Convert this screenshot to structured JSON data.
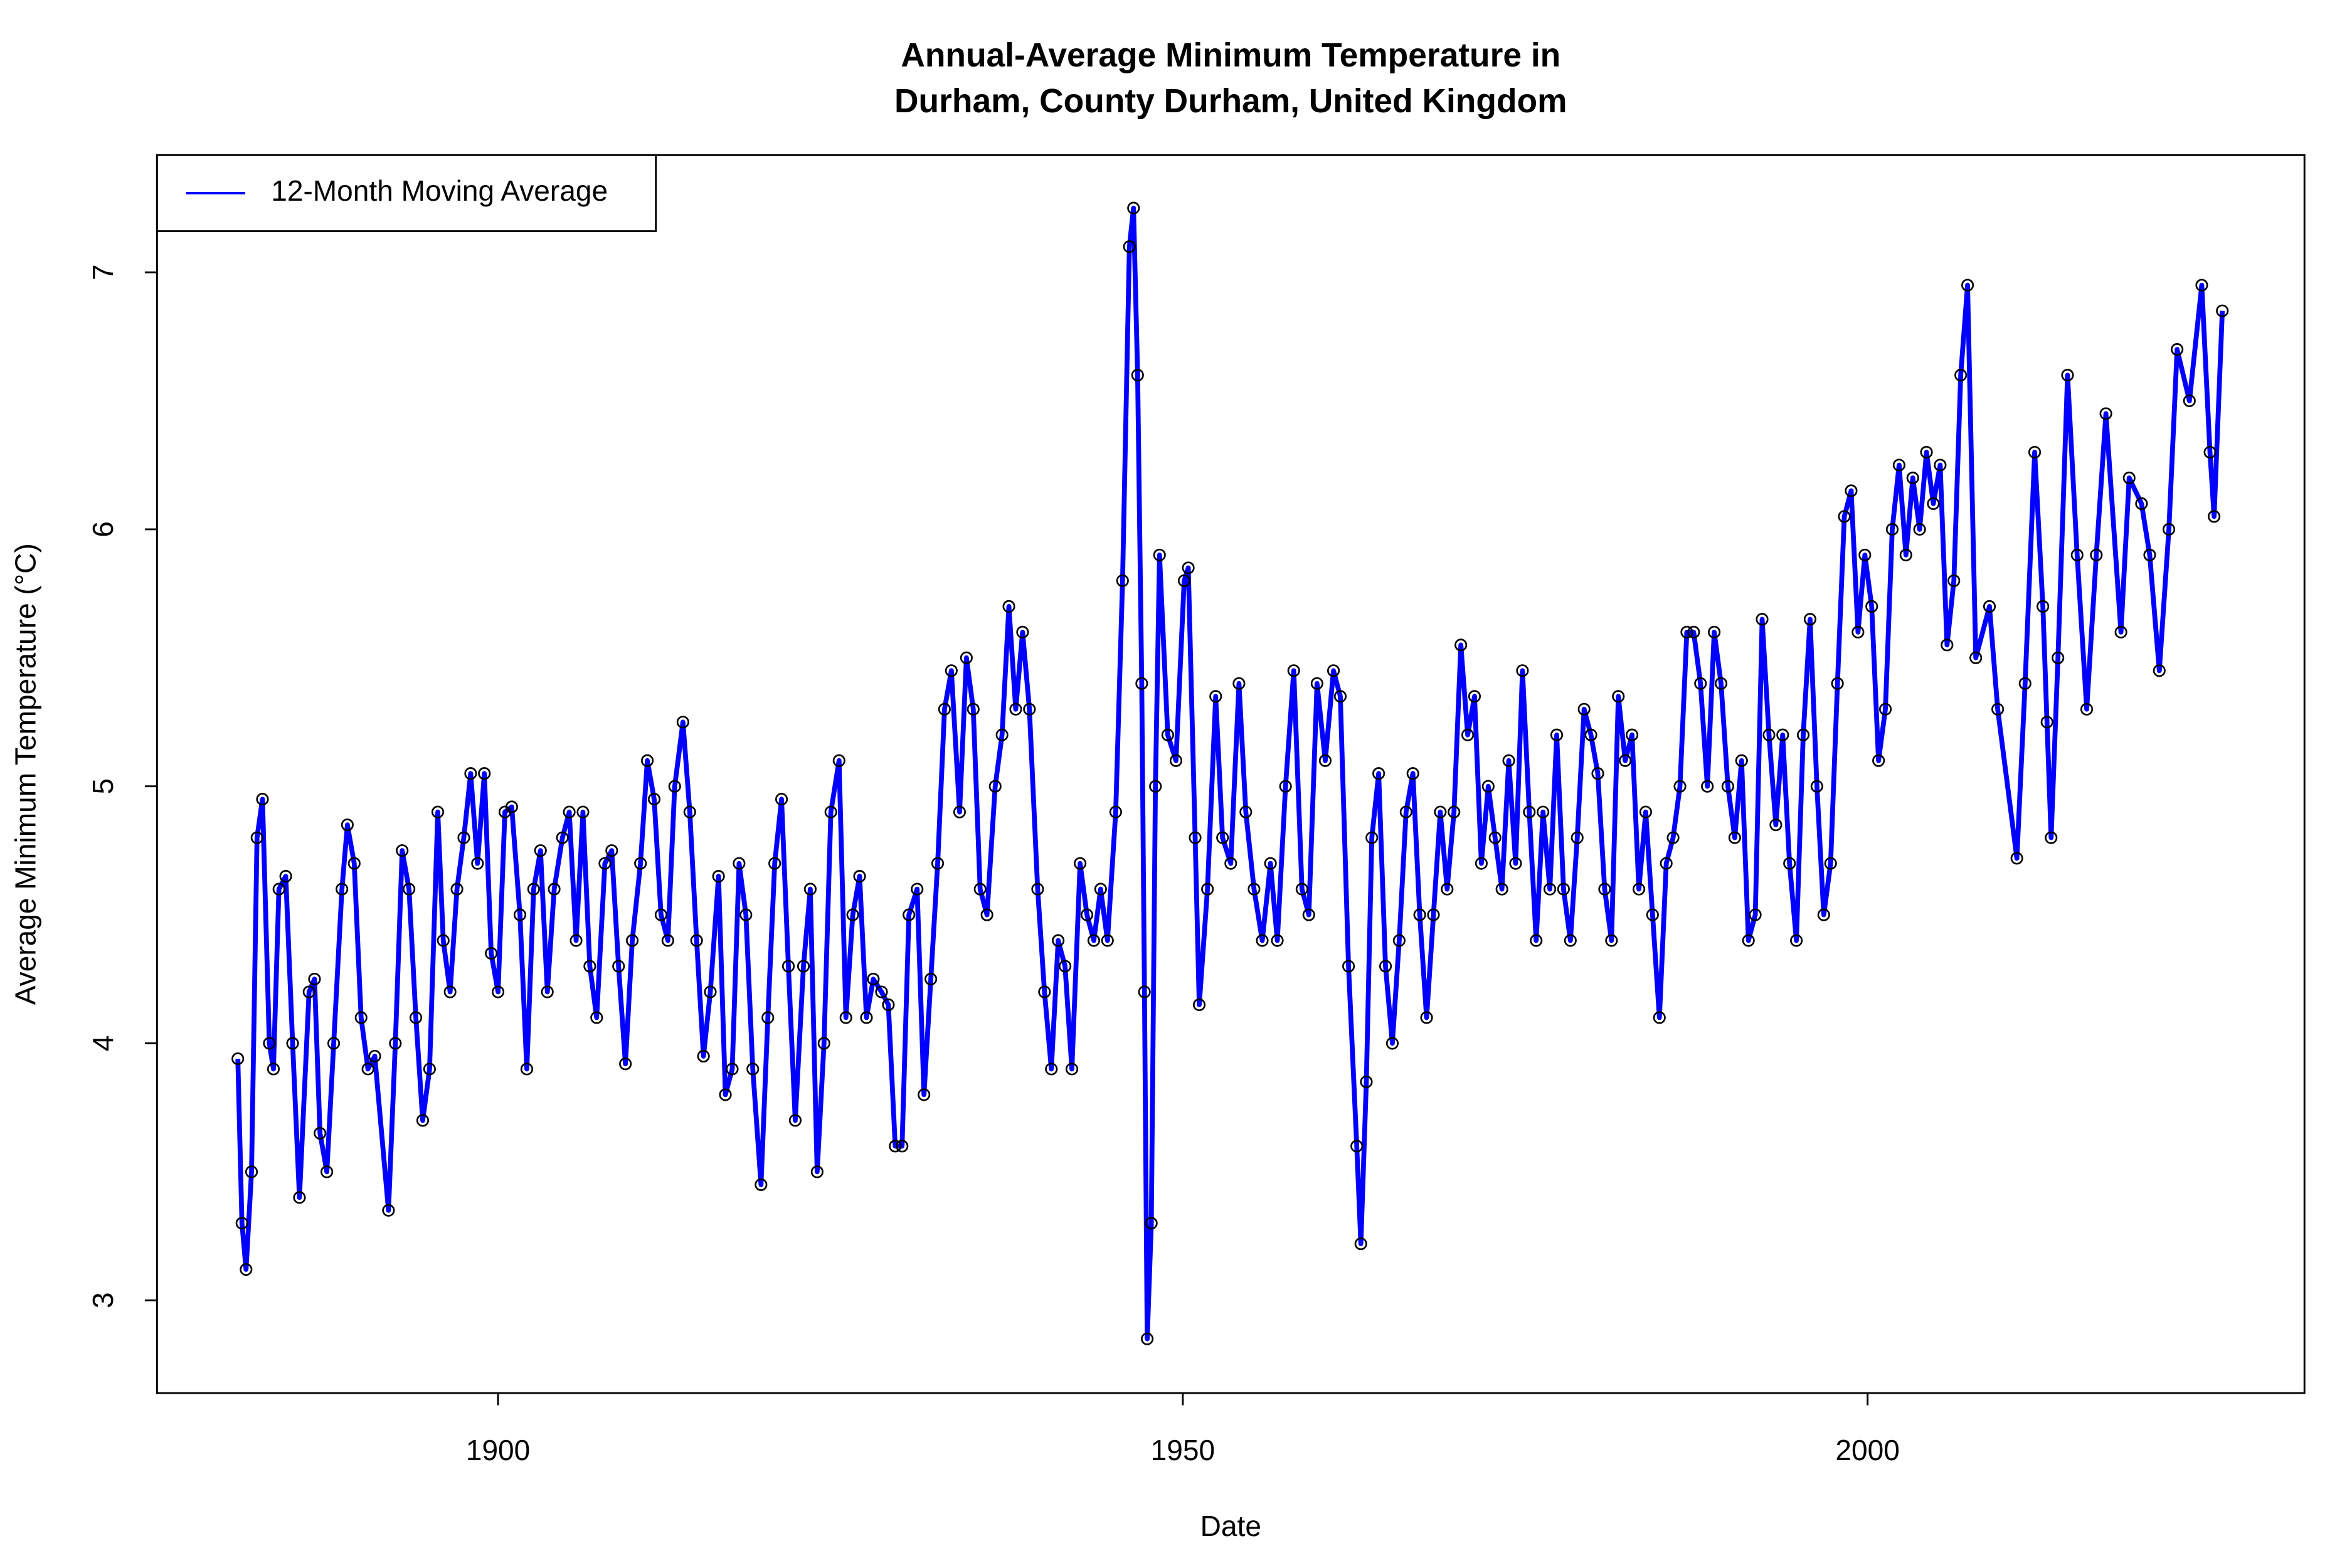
{
  "chart_data": {
    "type": "line",
    "title": [
      "Annual-Average Minimum Temperature in",
      "Durham, County Durham, United Kingdom"
    ],
    "x_label": "Date",
    "y_label": "Average Minimum Temperature (°C)",
    "xlim": [
      1875.1,
      2031.9
    ],
    "xticks": [
      1900,
      1950,
      2000
    ],
    "ylim": [
      2.639,
      7.456
    ],
    "yticks": [
      3,
      4,
      5,
      6,
      7
    ],
    "legend": "top-left",
    "marker_color": "#000000",
    "x": [
      1881.0,
      1881.3,
      1881.6,
      1882.0,
      1882.4,
      1882.8,
      1883.3,
      1883.6,
      1884.0,
      1884.5,
      1885.0,
      1885.5,
      1886.2,
      1886.6,
      1887.0,
      1887.5,
      1888.0,
      1888.6,
      1889.0,
      1889.5,
      1890.0,
      1890.5,
      1891.0,
      1892.0,
      1892.5,
      1893.0,
      1893.5,
      1894.0,
      1894.5,
      1895.0,
      1895.6,
      1896.0,
      1896.5,
      1897.0,
      1897.5,
      1898.0,
      1898.5,
      1899.0,
      1899.5,
      1900.0,
      1900.5,
      1901.0,
      1901.6,
      1902.1,
      1902.6,
      1903.1,
      1903.6,
      1904.1,
      1904.7,
      1905.2,
      1905.7,
      1906.2,
      1906.7,
      1907.2,
      1907.8,
      1908.3,
      1908.8,
      1909.3,
      1909.8,
      1910.4,
      1910.9,
      1911.4,
      1911.9,
      1912.4,
      1912.9,
      1913.5,
      1914.0,
      1914.5,
      1915.0,
      1915.5,
      1916.1,
      1916.6,
      1917.1,
      1917.6,
      1918.1,
      1918.6,
      1919.2,
      1919.7,
      1920.2,
      1920.7,
      1921.2,
      1921.7,
      1922.3,
      1922.8,
      1923.3,
      1923.8,
      1924.3,
      1924.9,
      1925.4,
      1925.9,
      1926.4,
      1926.9,
      1927.4,
      1928.0,
      1928.5,
      1929.0,
      1929.5,
      1930.0,
      1930.6,
      1931.1,
      1931.6,
      1932.1,
      1932.6,
      1933.1,
      1933.7,
      1934.2,
      1934.7,
      1935.2,
      1935.7,
      1936.3,
      1936.8,
      1937.3,
      1937.8,
      1938.3,
      1938.8,
      1939.4,
      1939.9,
      1940.4,
      1940.9,
      1941.4,
      1941.9,
      1942.5,
      1943.0,
      1943.5,
      1944.0,
      1944.5,
      1945.1,
      1945.6,
      1946.1,
      1946.4,
      1946.7,
      1947.0,
      1947.2,
      1947.4,
      1947.7,
      1948.0,
      1948.3,
      1948.9,
      1949.5,
      1950.1,
      1950.4,
      1950.9,
      1951.2,
      1951.8,
      1952.4,
      1952.9,
      1953.5,
      1954.1,
      1954.6,
      1955.2,
      1955.8,
      1956.4,
      1956.9,
      1957.5,
      1958.1,
      1958.7,
      1959.2,
      1959.8,
      1960.4,
      1961.0,
      1961.5,
      1962.1,
      1962.7,
      1963.0,
      1963.4,
      1963.8,
      1964.3,
      1964.8,
      1965.3,
      1965.8,
      1966.3,
      1966.8,
      1967.3,
      1967.8,
      1968.3,
      1968.8,
      1969.3,
      1969.8,
      1970.3,
      1970.8,
      1971.3,
      1971.8,
      1972.3,
      1972.8,
      1973.3,
      1973.8,
      1974.3,
      1974.8,
      1975.3,
      1975.8,
      1976.3,
      1976.8,
      1977.3,
      1977.8,
      1978.3,
      1978.8,
      1979.3,
      1979.8,
      1980.3,
      1980.8,
      1981.3,
      1981.8,
      1982.3,
      1982.8,
      1983.3,
      1983.8,
      1984.3,
      1984.8,
      1985.3,
      1985.8,
      1986.3,
      1986.8,
      1987.3,
      1987.8,
      1988.3,
      1988.8,
      1989.3,
      1989.8,
      1990.3,
      1990.8,
      1991.3,
      1991.8,
      1992.3,
      1992.8,
      1993.3,
      1993.8,
      1994.3,
      1994.8,
      1995.3,
      1995.8,
      1996.3,
      1996.8,
      1997.3,
      1997.8,
      1998.3,
      1998.8,
      1999.3,
      1999.8,
      2000.3,
      2000.8,
      2001.3,
      2001.8,
      2002.3,
      2002.8,
      2003.3,
      2003.8,
      2004.3,
      2004.8,
      2005.3,
      2005.8,
      2006.3,
      2006.8,
      2007.3,
      2007.9,
      2008.9,
      2009.5,
      2010.9,
      2011.5,
      2012.2,
      2012.8,
      2013.1,
      2013.4,
      2013.9,
      2014.6,
      2015.3,
      2016.0,
      2016.7,
      2017.4,
      2018.5,
      2019.1,
      2020.0,
      2020.6,
      2021.3,
      2022.0,
      2022.6,
      2023.5,
      2024.4,
      2025.0,
      2025.3,
      2025.9
    ],
    "series": [
      {
        "name": "12-Month Moving Average",
        "color": "#0000ff",
        "values": [
          3.94,
          3.3,
          3.12,
          3.5,
          4.8,
          4.95,
          4.0,
          3.9,
          4.6,
          4.65,
          4.0,
          3.4,
          4.2,
          4.25,
          3.65,
          3.5,
          4.0,
          4.6,
          4.85,
          4.7,
          4.1,
          3.9,
          3.95,
          3.35,
          4.0,
          4.75,
          4.6,
          4.1,
          3.7,
          3.9,
          4.9,
          4.4,
          4.2,
          4.6,
          4.8,
          5.05,
          4.7,
          5.05,
          4.35,
          4.2,
          4.9,
          4.92,
          4.5,
          3.9,
          4.6,
          4.75,
          4.2,
          4.6,
          4.8,
          4.9,
          4.4,
          4.9,
          4.3,
          4.1,
          4.7,
          4.75,
          4.3,
          3.92,
          4.4,
          4.7,
          5.1,
          4.95,
          4.5,
          4.4,
          5.0,
          5.25,
          4.9,
          4.4,
          3.95,
          4.2,
          4.65,
          3.8,
          3.9,
          4.7,
          4.5,
          3.9,
          3.45,
          4.1,
          4.7,
          4.95,
          4.3,
          3.7,
          4.3,
          4.6,
          3.5,
          4.0,
          4.9,
          5.1,
          4.1,
          4.5,
          4.65,
          4.1,
          4.25,
          4.2,
          4.15,
          3.6,
          3.6,
          4.5,
          4.6,
          3.8,
          4.25,
          4.7,
          5.3,
          5.45,
          4.9,
          5.5,
          5.3,
          4.6,
          4.5,
          5.0,
          5.2,
          5.7,
          5.3,
          5.6,
          5.3,
          4.6,
          4.2,
          3.9,
          4.4,
          4.3,
          3.9,
          4.7,
          4.5,
          4.4,
          4.6,
          4.4,
          4.9,
          5.8,
          7.1,
          7.25,
          6.6,
          5.4,
          4.2,
          2.85,
          3.3,
          5.0,
          5.9,
          5.2,
          5.1,
          5.8,
          5.85,
          4.8,
          4.15,
          4.6,
          5.35,
          4.8,
          4.7,
          5.4,
          4.9,
          4.6,
          4.4,
          4.7,
          4.4,
          5.0,
          5.45,
          4.6,
          4.5,
          5.4,
          5.1,
          5.45,
          5.35,
          4.3,
          3.6,
          3.22,
          3.85,
          4.8,
          5.05,
          4.3,
          4.0,
          4.4,
          4.9,
          5.05,
          4.5,
          4.1,
          4.5,
          4.9,
          4.6,
          4.9,
          5.55,
          5.2,
          5.35,
          4.7,
          5.0,
          4.8,
          4.6,
          5.1,
          4.7,
          5.45,
          4.9,
          4.4,
          4.9,
          4.6,
          5.2,
          4.6,
          4.4,
          4.8,
          5.3,
          5.2,
          5.05,
          4.6,
          4.4,
          5.35,
          5.1,
          5.2,
          4.6,
          4.9,
          4.5,
          4.1,
          4.7,
          4.8,
          5.0,
          5.6,
          5.6,
          5.4,
          5.0,
          5.6,
          5.4,
          5.0,
          4.8,
          5.1,
          4.4,
          4.5,
          5.65,
          5.2,
          4.85,
          5.2,
          4.7,
          4.4,
          5.2,
          5.65,
          5.0,
          4.5,
          4.7,
          5.4,
          6.05,
          6.15,
          5.6,
          5.9,
          5.7,
          5.1,
          5.3,
          6.0,
          6.25,
          5.9,
          6.2,
          6.0,
          6.3,
          6.1,
          6.25,
          5.55,
          5.8,
          6.6,
          6.95,
          5.5,
          5.7,
          5.3,
          4.72,
          5.4,
          6.3,
          5.7,
          5.25,
          4.8,
          5.5,
          6.6,
          5.9,
          5.3,
          5.9,
          6.45,
          5.6,
          6.2,
          6.1,
          5.9,
          5.45,
          6.0,
          6.7,
          6.5,
          6.95,
          6.3,
          6.05,
          6.85
        ]
      }
    ]
  }
}
